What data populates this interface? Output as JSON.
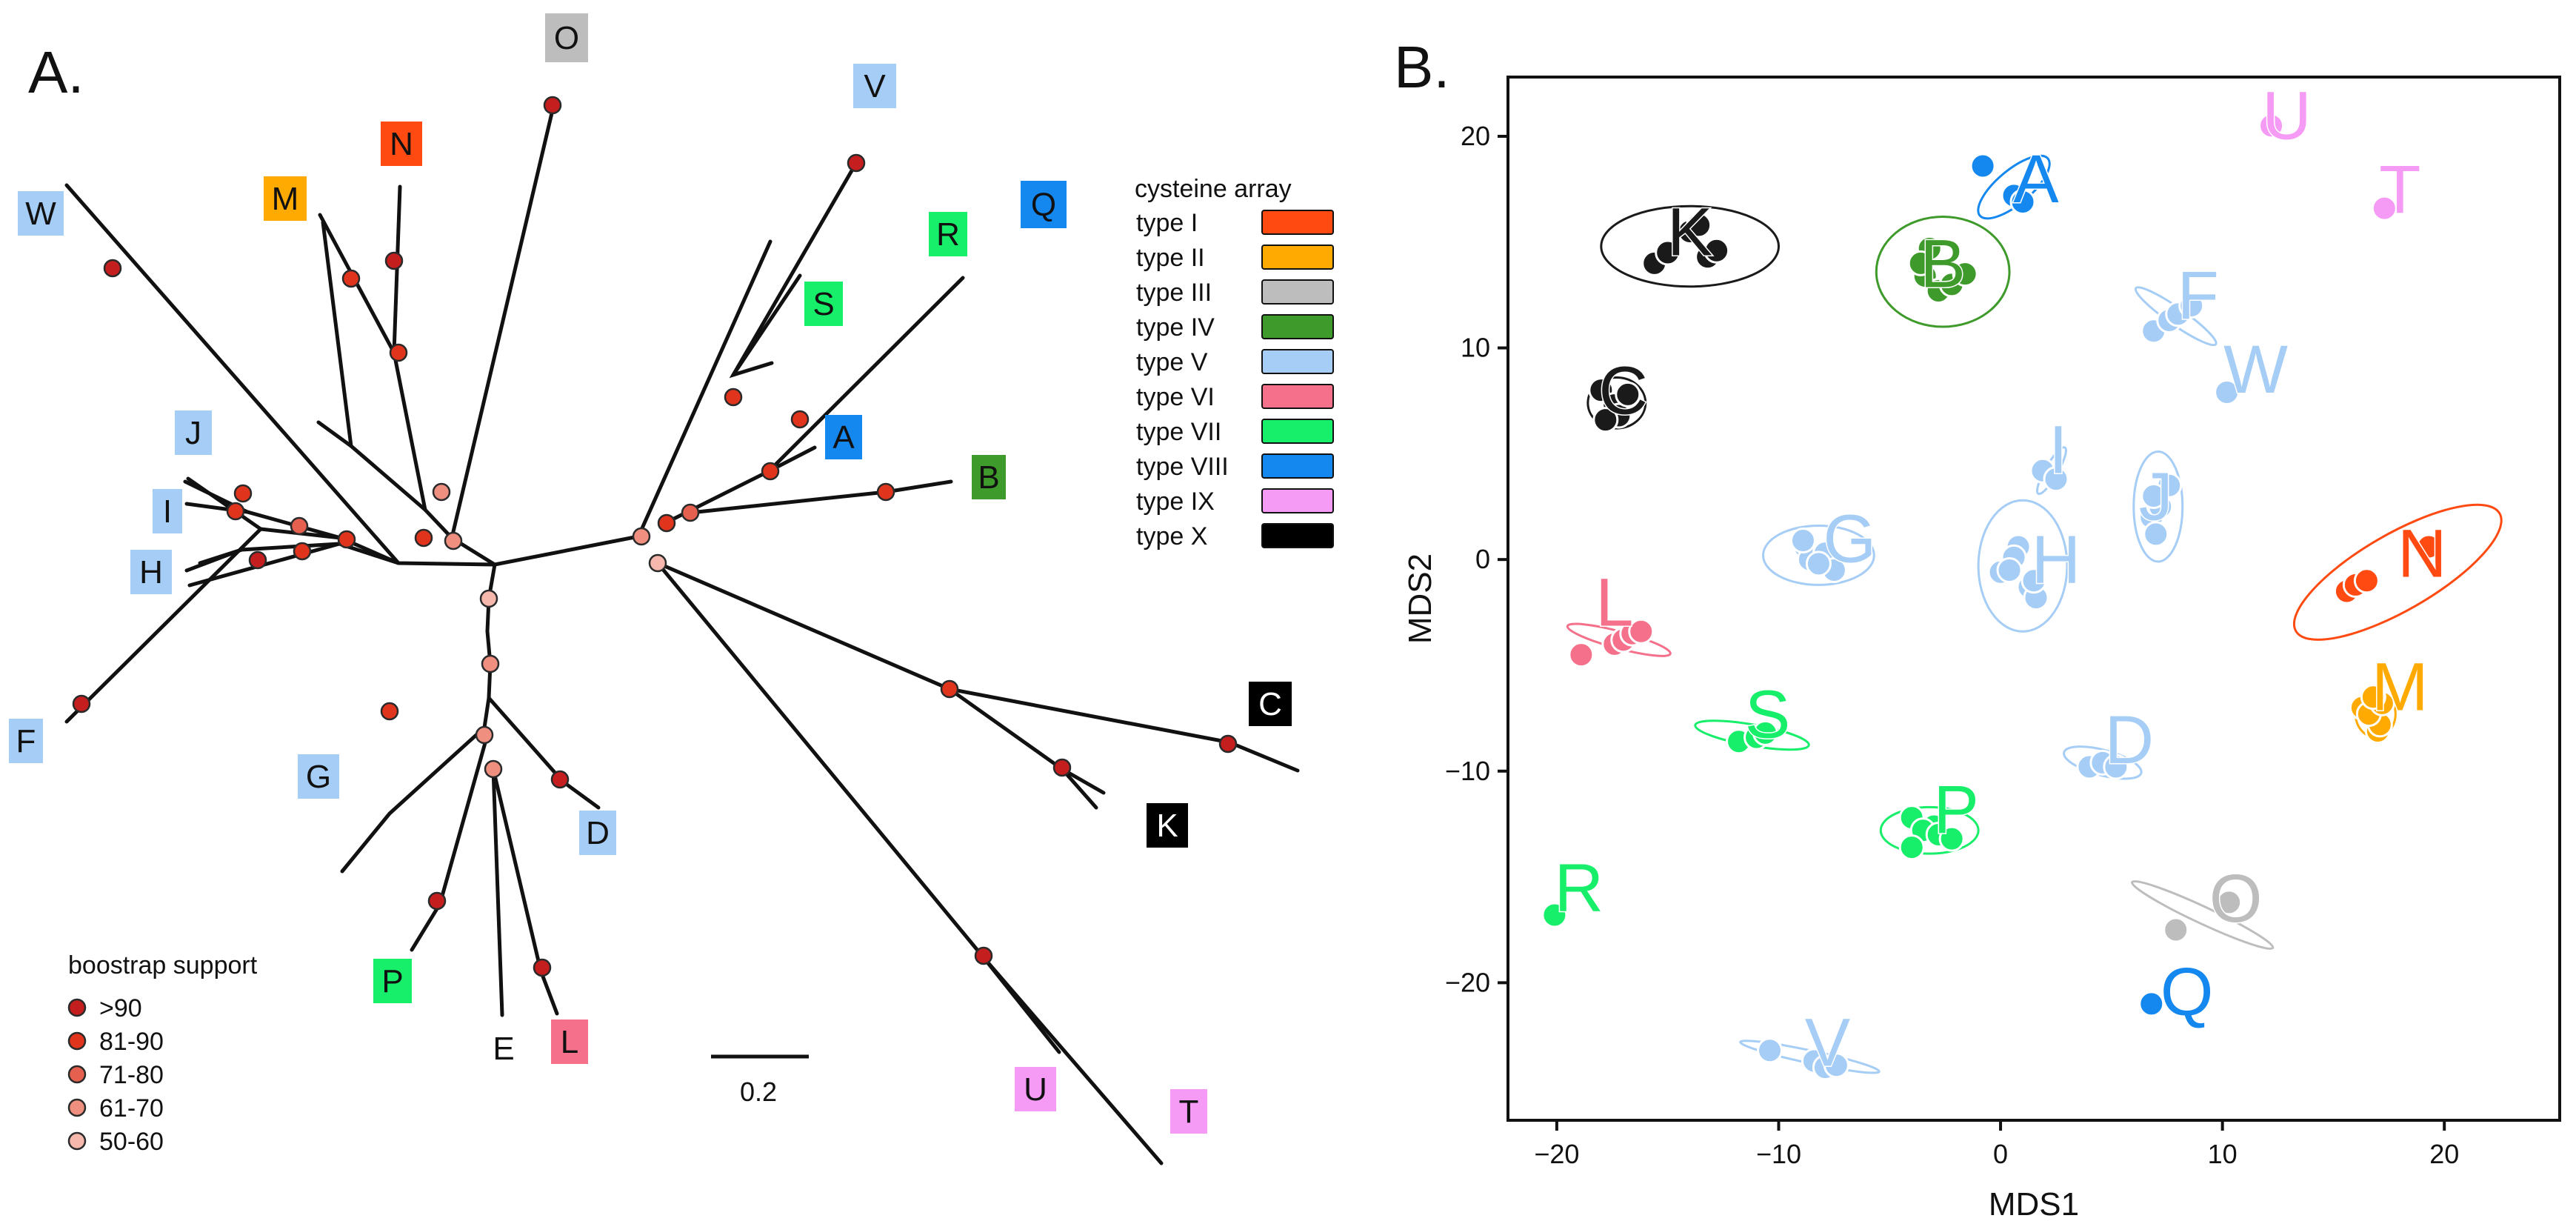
{
  "panels": {
    "a_label": "A.",
    "b_label": "B."
  },
  "cysteine_legend": {
    "title": "cysteine array",
    "items": [
      {
        "name": "type I",
        "color": "#ff4a12"
      },
      {
        "name": "type II",
        "color": "#ffaa00"
      },
      {
        "name": "type III",
        "color": "#bdbdbd"
      },
      {
        "name": "type IV",
        "color": "#3e9a2a"
      },
      {
        "name": "type V",
        "color": "#a6cdf5"
      },
      {
        "name": "type VI",
        "color": "#f5708a"
      },
      {
        "name": "type VII",
        "color": "#17ee6a"
      },
      {
        "name": "type VIII",
        "color": "#1588f0"
      },
      {
        "name": "type IX",
        "color": "#f59af5"
      },
      {
        "name": "type X",
        "color": "#000000"
      }
    ]
  },
  "bootstrap_legend": {
    "title": "boostrap support",
    "items": [
      {
        "label": ">90",
        "color": "#c41e1e"
      },
      {
        "label": "81-90",
        "color": "#e0341c"
      },
      {
        "label": "71-80",
        "color": "#e5604f"
      },
      {
        "label": "61-70",
        "color": "#ee8f80"
      },
      {
        "label": "50-60",
        "color": "#f6b7ac"
      }
    ]
  },
  "scale_bar": {
    "label": "0.2",
    "value": 0.2
  },
  "tree_leaves": [
    {
      "label": "A",
      "type": "type VIII",
      "boxed": true
    },
    {
      "label": "B",
      "type": "type IV",
      "boxed": true
    },
    {
      "label": "C",
      "type": "type X",
      "boxed": true
    },
    {
      "label": "D",
      "type": "type V",
      "boxed": true
    },
    {
      "label": "E",
      "type": "",
      "boxed": false
    },
    {
      "label": "F",
      "type": "type V",
      "boxed": true
    },
    {
      "label": "G",
      "type": "type V",
      "boxed": true
    },
    {
      "label": "H",
      "type": "type V",
      "boxed": true
    },
    {
      "label": "I",
      "type": "type V",
      "boxed": true
    },
    {
      "label": "J",
      "type": "type V",
      "boxed": true
    },
    {
      "label": "K",
      "type": "type X",
      "boxed": true
    },
    {
      "label": "L",
      "type": "type VI",
      "boxed": true
    },
    {
      "label": "M",
      "type": "type II",
      "boxed": true
    },
    {
      "label": "N",
      "type": "type I",
      "boxed": true
    },
    {
      "label": "O",
      "type": "type III",
      "boxed": true
    },
    {
      "label": "P",
      "type": "type VII",
      "boxed": true
    },
    {
      "label": "Q",
      "type": "type VIII",
      "boxed": true
    },
    {
      "label": "R",
      "type": "type VII",
      "boxed": true
    },
    {
      "label": "S",
      "type": "type VII",
      "boxed": true
    },
    {
      "label": "T",
      "type": "type IX",
      "boxed": true
    },
    {
      "label": "U",
      "type": "type IX",
      "boxed": true
    },
    {
      "label": "V",
      "type": "type V",
      "boxed": true
    },
    {
      "label": "W",
      "type": "type V",
      "boxed": true
    }
  ],
  "chart_data": {
    "type": "scatter",
    "title": "",
    "xlabel": "MDS1",
    "ylabel": "MDS2",
    "xlim": [
      -22.2,
      25.2
    ],
    "ylim": [
      -26.5,
      22.8
    ],
    "xticks": [
      -20,
      -10,
      0,
      10,
      20
    ],
    "yticks": [
      -20,
      -10,
      0,
      10,
      20
    ],
    "xtick_labels": [
      "−20",
      "−10",
      "0",
      "10",
      "20"
    ],
    "ytick_labels": [
      "−20",
      "−10",
      "0",
      "10",
      "20"
    ],
    "grid": false,
    "series": [
      {
        "name": "A",
        "type": "type VIII",
        "color": "#1588f0",
        "points": [
          [
            -0.8,
            18.6
          ],
          [
            0.6,
            17.2
          ],
          [
            1.0,
            16.9
          ]
        ],
        "label_at": [
          1.6,
          18.0
        ],
        "ellipse": {
          "center": [
            0.6,
            17.6
          ],
          "rx": 2.0,
          "ry": 0.8,
          "angle": -40
        }
      },
      {
        "name": "B",
        "type": "type IV",
        "color": "#3e9a2a",
        "points": [
          [
            -3.2,
            14.7
          ],
          [
            -3.4,
            13.4
          ],
          [
            -2.8,
            12.7
          ],
          [
            -2.2,
            13.0
          ],
          [
            -1.6,
            13.5
          ],
          [
            -3.6,
            14.0
          ]
        ],
        "label_at": [
          -2.6,
          14.0
        ],
        "ellipse": {
          "center": [
            -2.6,
            13.6
          ],
          "rx": 3.0,
          "ry": 2.6,
          "angle": 0
        }
      },
      {
        "name": "C",
        "type": "type X",
        "color": "#1a1a1a",
        "points": [
          [
            -18.0,
            8.0
          ],
          [
            -17.4,
            7.3
          ],
          [
            -17.2,
            6.8
          ],
          [
            -17.8,
            6.6
          ],
          [
            -16.8,
            7.8
          ]
        ],
        "label_at": [
          -17.0,
          8.0
        ],
        "ellipse": {
          "center": [
            -17.3,
            7.4
          ],
          "rx": 1.3,
          "ry": 1.2,
          "angle": 0
        }
      },
      {
        "name": "D",
        "type": "type V",
        "color": "#a6cdf5",
        "points": [
          [
            4.0,
            -9.8
          ],
          [
            4.6,
            -9.6
          ],
          [
            5.2,
            -9.8
          ]
        ],
        "label_at": [
          5.8,
          -8.5
        ],
        "ellipse": {
          "center": [
            4.6,
            -9.6
          ],
          "rx": 1.8,
          "ry": 0.6,
          "angle": 15
        }
      },
      {
        "name": "F",
        "type": "type V",
        "color": "#a6cdf5",
        "points": [
          [
            6.9,
            10.8
          ],
          [
            7.6,
            11.3
          ],
          [
            8.0,
            11.6
          ],
          [
            8.6,
            12.0
          ]
        ],
        "label_at": [
          8.9,
          12.5
        ],
        "ellipse": {
          "center": [
            7.9,
            11.5
          ],
          "rx": 2.2,
          "ry": 0.4,
          "angle": 35
        }
      },
      {
        "name": "G",
        "type": "type V",
        "color": "#a6cdf5",
        "points": [
          [
            -8.8,
            0.6
          ],
          [
            -8.6,
            0.0
          ],
          [
            -7.9,
            0.3
          ],
          [
            -7.5,
            -0.5
          ],
          [
            -8.2,
            -0.2
          ],
          [
            -8.9,
            0.9
          ]
        ],
        "label_at": [
          -6.8,
          1.0
        ],
        "ellipse": {
          "center": [
            -8.2,
            0.2
          ],
          "rx": 2.5,
          "ry": 1.4,
          "angle": 0
        }
      },
      {
        "name": "H",
        "type": "type V",
        "color": "#a6cdf5",
        "points": [
          [
            0.8,
            0.6
          ],
          [
            0.6,
            0.1
          ],
          [
            0.0,
            -0.6
          ],
          [
            1.3,
            -1.3
          ],
          [
            1.6,
            -1.8
          ],
          [
            0.4,
            -0.5
          ],
          [
            1.5,
            -1.0
          ]
        ],
        "label_at": [
          2.5,
          0.0
        ],
        "ellipse": {
          "center": [
            1.0,
            -0.3
          ],
          "rx": 2.0,
          "ry": 3.1,
          "angle": 0
        }
      },
      {
        "name": "I",
        "type": "type V",
        "color": "#a6cdf5",
        "points": [
          [
            1.9,
            4.2
          ],
          [
            2.5,
            3.8
          ]
        ],
        "label_at": [
          2.6,
          5.2
        ],
        "ellipse": {
          "center": [
            2.3,
            4.2
          ],
          "rx": 1.2,
          "ry": 0.3,
          "angle": -60
        }
      },
      {
        "name": "J",
        "type": "type V",
        "color": "#a6cdf5",
        "points": [
          [
            6.8,
            2.0
          ],
          [
            7.2,
            2.5
          ],
          [
            7.6,
            3.5
          ],
          [
            7.0,
            1.2
          ],
          [
            6.9,
            3.0
          ]
        ],
        "label_at": [
          7.0,
          3.0
        ],
        "ellipse": {
          "center": [
            7.1,
            2.5
          ],
          "rx": 1.1,
          "ry": 2.6,
          "angle": 0
        }
      },
      {
        "name": "K",
        "type": "type X",
        "color": "#1a1a1a",
        "points": [
          [
            -15.6,
            14.0
          ],
          [
            -15.0,
            14.5
          ],
          [
            -13.2,
            14.3
          ],
          [
            -14.0,
            15.5
          ],
          [
            -13.6,
            15.8
          ],
          [
            -12.8,
            14.6
          ]
        ],
        "label_at": [
          -14.0,
          15.5
        ],
        "ellipse": {
          "center": [
            -14.0,
            14.8
          ],
          "rx": 4.0,
          "ry": 1.9,
          "angle": 0
        }
      },
      {
        "name": "L",
        "type": "type VI",
        "color": "#f5708a",
        "points": [
          [
            -18.9,
            -4.5
          ],
          [
            -17.4,
            -4.0
          ],
          [
            -17.0,
            -3.8
          ],
          [
            -16.6,
            -3.5
          ],
          [
            -16.2,
            -3.4
          ]
        ],
        "label_at": [
          -17.4,
          -2.0
        ],
        "ellipse": {
          "center": [
            -17.2,
            -3.8
          ],
          "rx": 2.4,
          "ry": 0.4,
          "angle": 15
        }
      },
      {
        "name": "M",
        "type": "type II",
        "color": "#ffaa00",
        "points": [
          [
            16.3,
            -7.0
          ],
          [
            16.9,
            -7.5
          ],
          [
            17.0,
            -8.1
          ],
          [
            17.1,
            -7.8
          ],
          [
            16.6,
            -7.3
          ],
          [
            17.2,
            -6.8
          ],
          [
            16.8,
            -6.5
          ]
        ],
        "label_at": [
          18.0,
          -6.0
        ],
        "ellipse": {
          "center": [
            16.9,
            -7.3
          ],
          "rx": 0.9,
          "ry": 1.1,
          "angle": 0
        }
      },
      {
        "name": "N",
        "type": "type I",
        "color": "#ff4a12",
        "points": [
          [
            15.6,
            -1.5
          ],
          [
            16.0,
            -1.2
          ],
          [
            16.5,
            -1.0
          ],
          [
            19.3,
            0.6
          ]
        ],
        "label_at": [
          19.0,
          0.3
        ],
        "ellipse": {
          "center": [
            17.9,
            -0.6
          ],
          "rx": 5.3,
          "ry": 1.8,
          "angle": -30
        }
      },
      {
        "name": "O",
        "type": "type III",
        "color": "#bdbdbd",
        "points": [
          [
            7.9,
            -17.5
          ],
          [
            10.3,
            -16.2
          ]
        ],
        "label_at": [
          10.6,
          -16.0
        ],
        "ellipse": {
          "center": [
            9.1,
            -16.8
          ],
          "rx": 3.5,
          "ry": 0.4,
          "angle": 25
        }
      },
      {
        "name": "P",
        "type": "type VII",
        "color": "#17ee6a",
        "points": [
          [
            -4.0,
            -12.2
          ],
          [
            -3.0,
            -12.6
          ],
          [
            -3.5,
            -12.8
          ],
          [
            -4.0,
            -13.6
          ],
          [
            -2.8,
            -13.0
          ],
          [
            -2.2,
            -13.2
          ]
        ],
        "label_at": [
          -2.0,
          -11.8
        ],
        "ellipse": {
          "center": [
            -3.2,
            -12.8
          ],
          "rx": 2.2,
          "ry": 1.1,
          "angle": 0
        }
      },
      {
        "name": "Q",
        "type": "type VIII",
        "color": "#1588f0",
        "points": [
          [
            6.8,
            -21.0
          ]
        ],
        "label_at": [
          8.4,
          -20.4
        ],
        "ellipse": null
      },
      {
        "name": "R",
        "type": "type VII",
        "color": "#17ee6a",
        "points": [
          [
            -20.1,
            -16.8
          ]
        ],
        "label_at": [
          -19.0,
          -15.5
        ],
        "ellipse": null
      },
      {
        "name": "S",
        "type": "type VII",
        "color": "#17ee6a",
        "points": [
          [
            -11.8,
            -8.6
          ],
          [
            -11.0,
            -8.4
          ],
          [
            -10.6,
            -8.2
          ]
        ],
        "label_at": [
          -10.5,
          -7.3
        ],
        "ellipse": {
          "center": [
            -11.2,
            -8.3
          ],
          "rx": 2.6,
          "ry": 0.5,
          "angle": 10
        }
      },
      {
        "name": "T",
        "type": "type IX",
        "color": "#f59af5",
        "points": [
          [
            17.3,
            16.6
          ]
        ],
        "label_at": [
          18.0,
          17.5
        ],
        "ellipse": null
      },
      {
        "name": "U",
        "type": "type IX",
        "color": "#f59af5",
        "points": [
          [
            12.2,
            20.5
          ]
        ],
        "label_at": [
          12.9,
          21.0
        ],
        "ellipse": null
      },
      {
        "name": "V",
        "type": "type V",
        "color": "#a6cdf5",
        "points": [
          [
            -10.4,
            -23.2
          ],
          [
            -8.4,
            -23.7
          ],
          [
            -7.9,
            -24.0
          ],
          [
            -7.4,
            -23.9
          ]
        ],
        "label_at": [
          -7.8,
          -22.8
        ],
        "ellipse": {
          "center": [
            -8.6,
            -23.5
          ],
          "rx": 3.2,
          "ry": 0.3,
          "angle": 12
        }
      },
      {
        "name": "W",
        "type": "type V",
        "color": "#a6cdf5",
        "points": [
          [
            10.2,
            7.9
          ]
        ],
        "label_at": [
          11.5,
          9.0
        ],
        "ellipse": null
      }
    ]
  }
}
